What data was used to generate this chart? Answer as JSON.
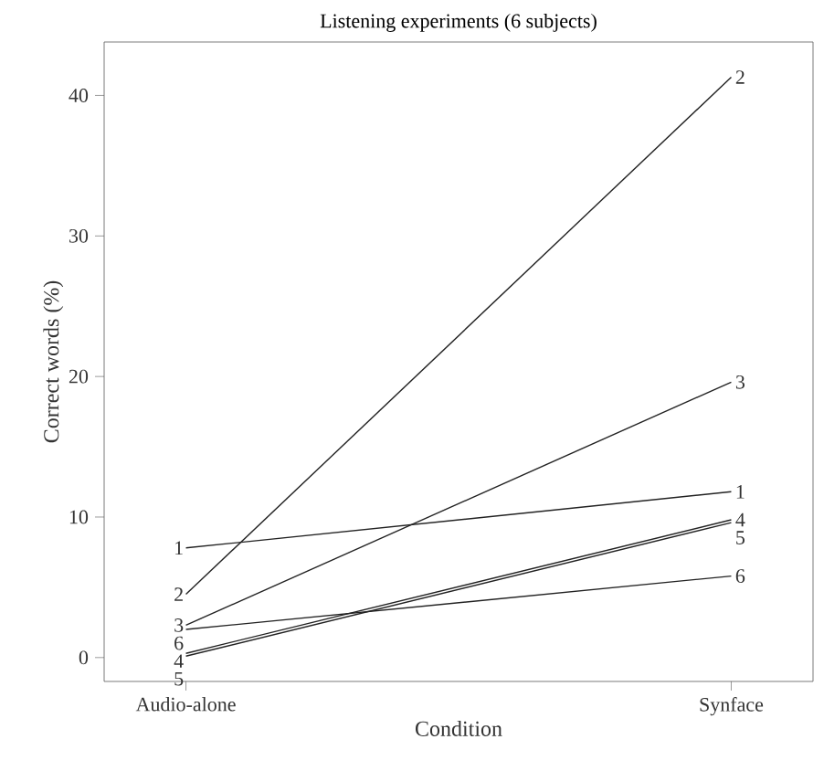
{
  "chart_data": {
    "type": "line",
    "title": "Listening experiments (6 subjects)",
    "xlabel": "Condition",
    "ylabel": "Correct words (%)",
    "categories": [
      "Audio-alone",
      "Synface"
    ],
    "series": [
      {
        "name": "1",
        "color": "#222222",
        "values": [
          7.8,
          11.8
        ]
      },
      {
        "name": "2",
        "color": "#222222",
        "values": [
          4.5,
          41.3
        ]
      },
      {
        "name": "3",
        "color": "#222222",
        "values": [
          2.3,
          19.6
        ]
      },
      {
        "name": "4",
        "color": "#222222",
        "values": [
          0.3,
          9.8
        ]
      },
      {
        "name": "5",
        "color": "#222222",
        "values": [
          0.1,
          9.6
        ]
      },
      {
        "name": "6",
        "color": "#222222",
        "values": [
          2.0,
          5.8
        ]
      }
    ],
    "ylim": [
      -1.7,
      43.8
    ],
    "yticks": [
      0,
      10,
      20,
      30,
      40
    ],
    "grid": false,
    "legend": false,
    "marker": "none",
    "line_style": "solid"
  }
}
